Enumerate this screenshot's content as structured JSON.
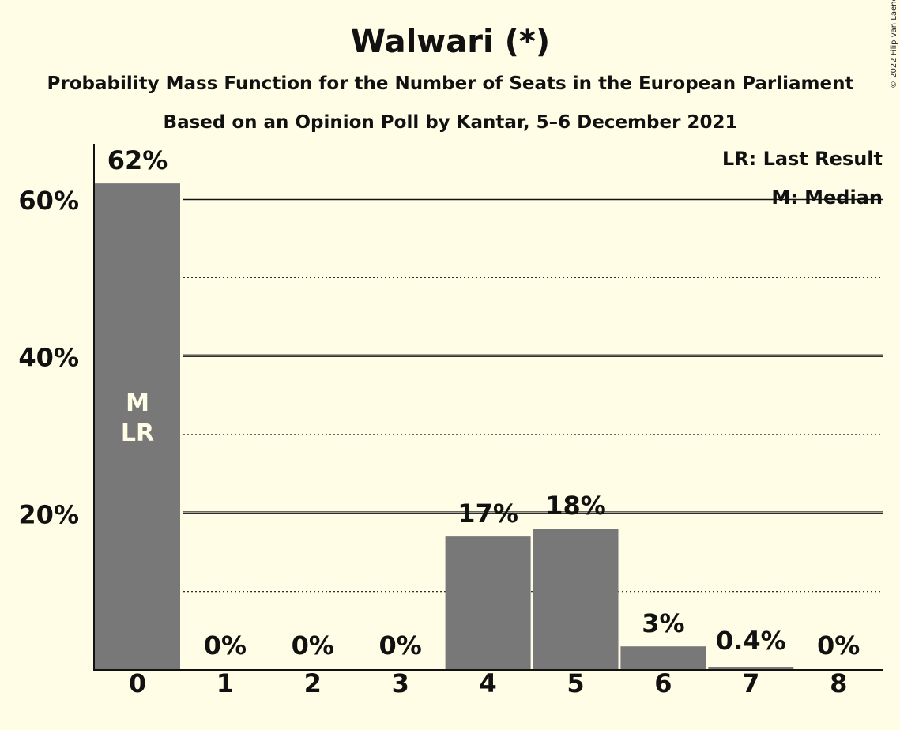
{
  "title": "Walwari (*)",
  "subtitle_1": "Probability Mass Function for the Number of Seats in the European Parliament",
  "subtitle_2": "Based on an Opinion Poll by Kantar, 5–6 December 2021",
  "copyright": "© 2022 Filip van Laenen",
  "legend": {
    "last_result": "LR: Last Result",
    "median": "M: Median"
  },
  "colors": {
    "background": "#fffde6",
    "bar": "#787878",
    "text": "#111111"
  },
  "chart_data": {
    "type": "bar",
    "categories": [
      "0",
      "1",
      "2",
      "3",
      "4",
      "5",
      "6",
      "7",
      "8"
    ],
    "values": [
      62,
      0,
      0,
      0,
      17,
      18,
      3,
      0.4,
      0
    ],
    "value_labels": [
      "62%",
      "0%",
      "0%",
      "0%",
      "17%",
      "18%",
      "3%",
      "0.4%",
      "0%"
    ],
    "in_bar_labels": [
      [
        "M",
        "LR"
      ],
      [],
      [],
      [],
      [],
      [],
      [],
      [],
      []
    ],
    "ylim": [
      0,
      67
    ],
    "yticks": [
      20,
      40,
      60
    ],
    "ytick_labels": [
      "20%",
      "40%",
      "60%"
    ],
    "minor_gridlines": [
      10,
      30,
      50
    ],
    "grid": true,
    "xlabel": "",
    "ylabel": ""
  }
}
